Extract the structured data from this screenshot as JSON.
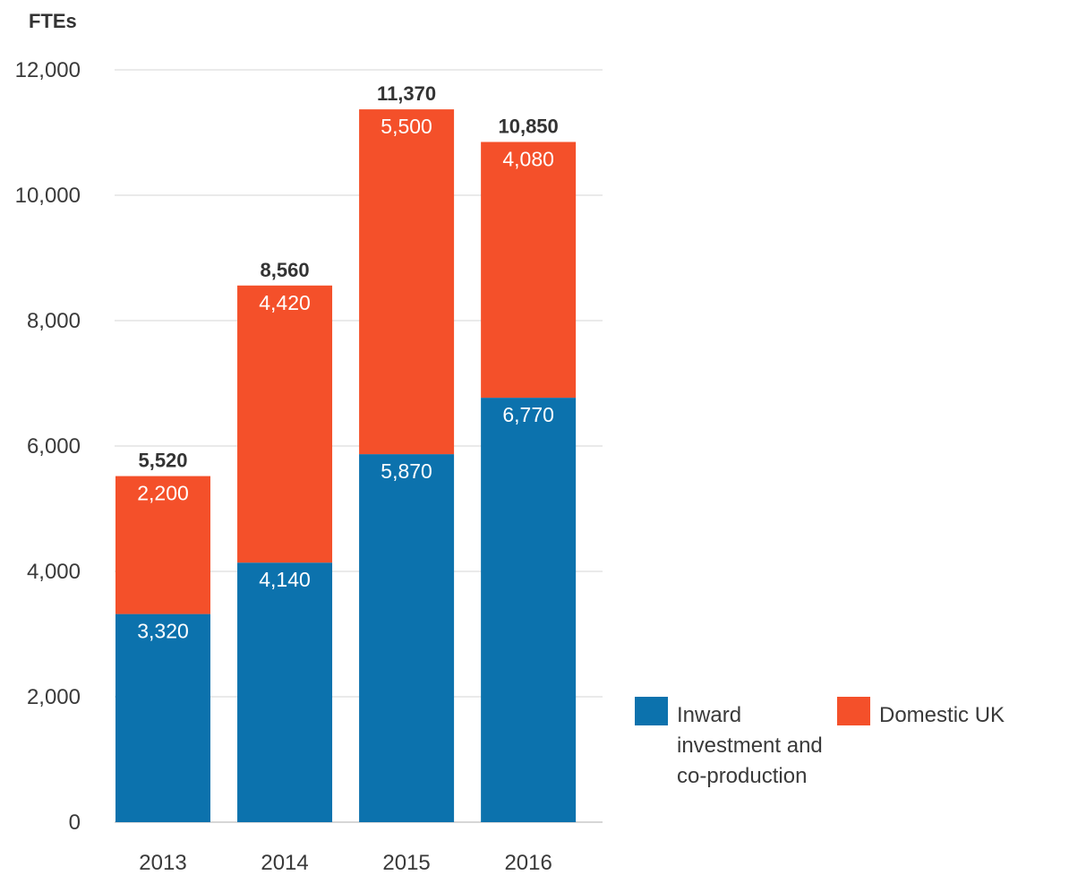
{
  "chart_data": {
    "type": "bar",
    "stacked": true,
    "ylabel": "FTEs",
    "ylim": [
      0,
      12000
    ],
    "yticks": [
      0,
      2000,
      4000,
      6000,
      8000,
      10000,
      12000
    ],
    "ytick_labels": [
      "0",
      "2,000",
      "4,000",
      "6,000",
      "8,000",
      "10,000",
      "12,000"
    ],
    "categories": [
      "2013",
      "2014",
      "2015",
      "2016"
    ],
    "series": [
      {
        "name": "Inward investment and co-production",
        "legend_lines": [
          "Inward",
          "investment and",
          "co-production"
        ],
        "color": "#0c72ad",
        "values": [
          3320,
          4140,
          5870,
          6770
        ],
        "labels": [
          "3,320",
          "4,140",
          "5,870",
          "6,770"
        ]
      },
      {
        "name": "Domestic UK",
        "legend_lines": [
          "Domestic UK"
        ],
        "color": "#f4502a",
        "values": [
          2200,
          4420,
          5500,
          4080
        ],
        "labels": [
          "2,200",
          "4,420",
          "5,500",
          "4,080"
        ]
      }
    ],
    "totals": [
      5520,
      8560,
      11370,
      10850
    ],
    "total_labels": [
      "5,520",
      "8,560",
      "11,370",
      "10,850"
    ],
    "grid": true,
    "legend_position": "bottom-right"
  }
}
